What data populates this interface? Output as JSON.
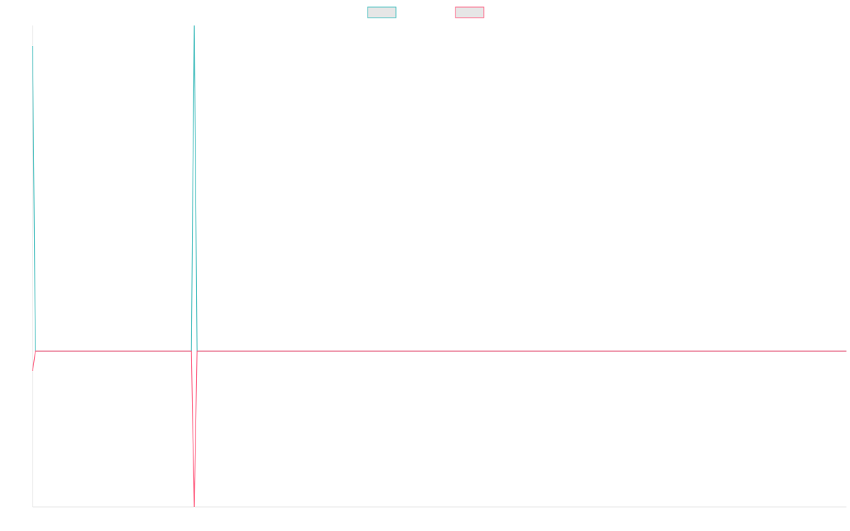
{
  "chart_data": {
    "type": "line",
    "x": [
      0,
      1,
      56,
      57,
      58,
      287
    ],
    "series": [
      {
        "color": "#4bc0c0",
        "values": [
          43.1,
          0,
          0,
          46,
          0,
          0
        ]
      },
      {
        "color": "#ff6384",
        "values": [
          -2.8,
          0,
          0,
          -22,
          0,
          0
        ]
      }
    ],
    "xlim": [
      0,
      287
    ],
    "ylim": [
      -22,
      46
    ],
    "legend": "top"
  }
}
